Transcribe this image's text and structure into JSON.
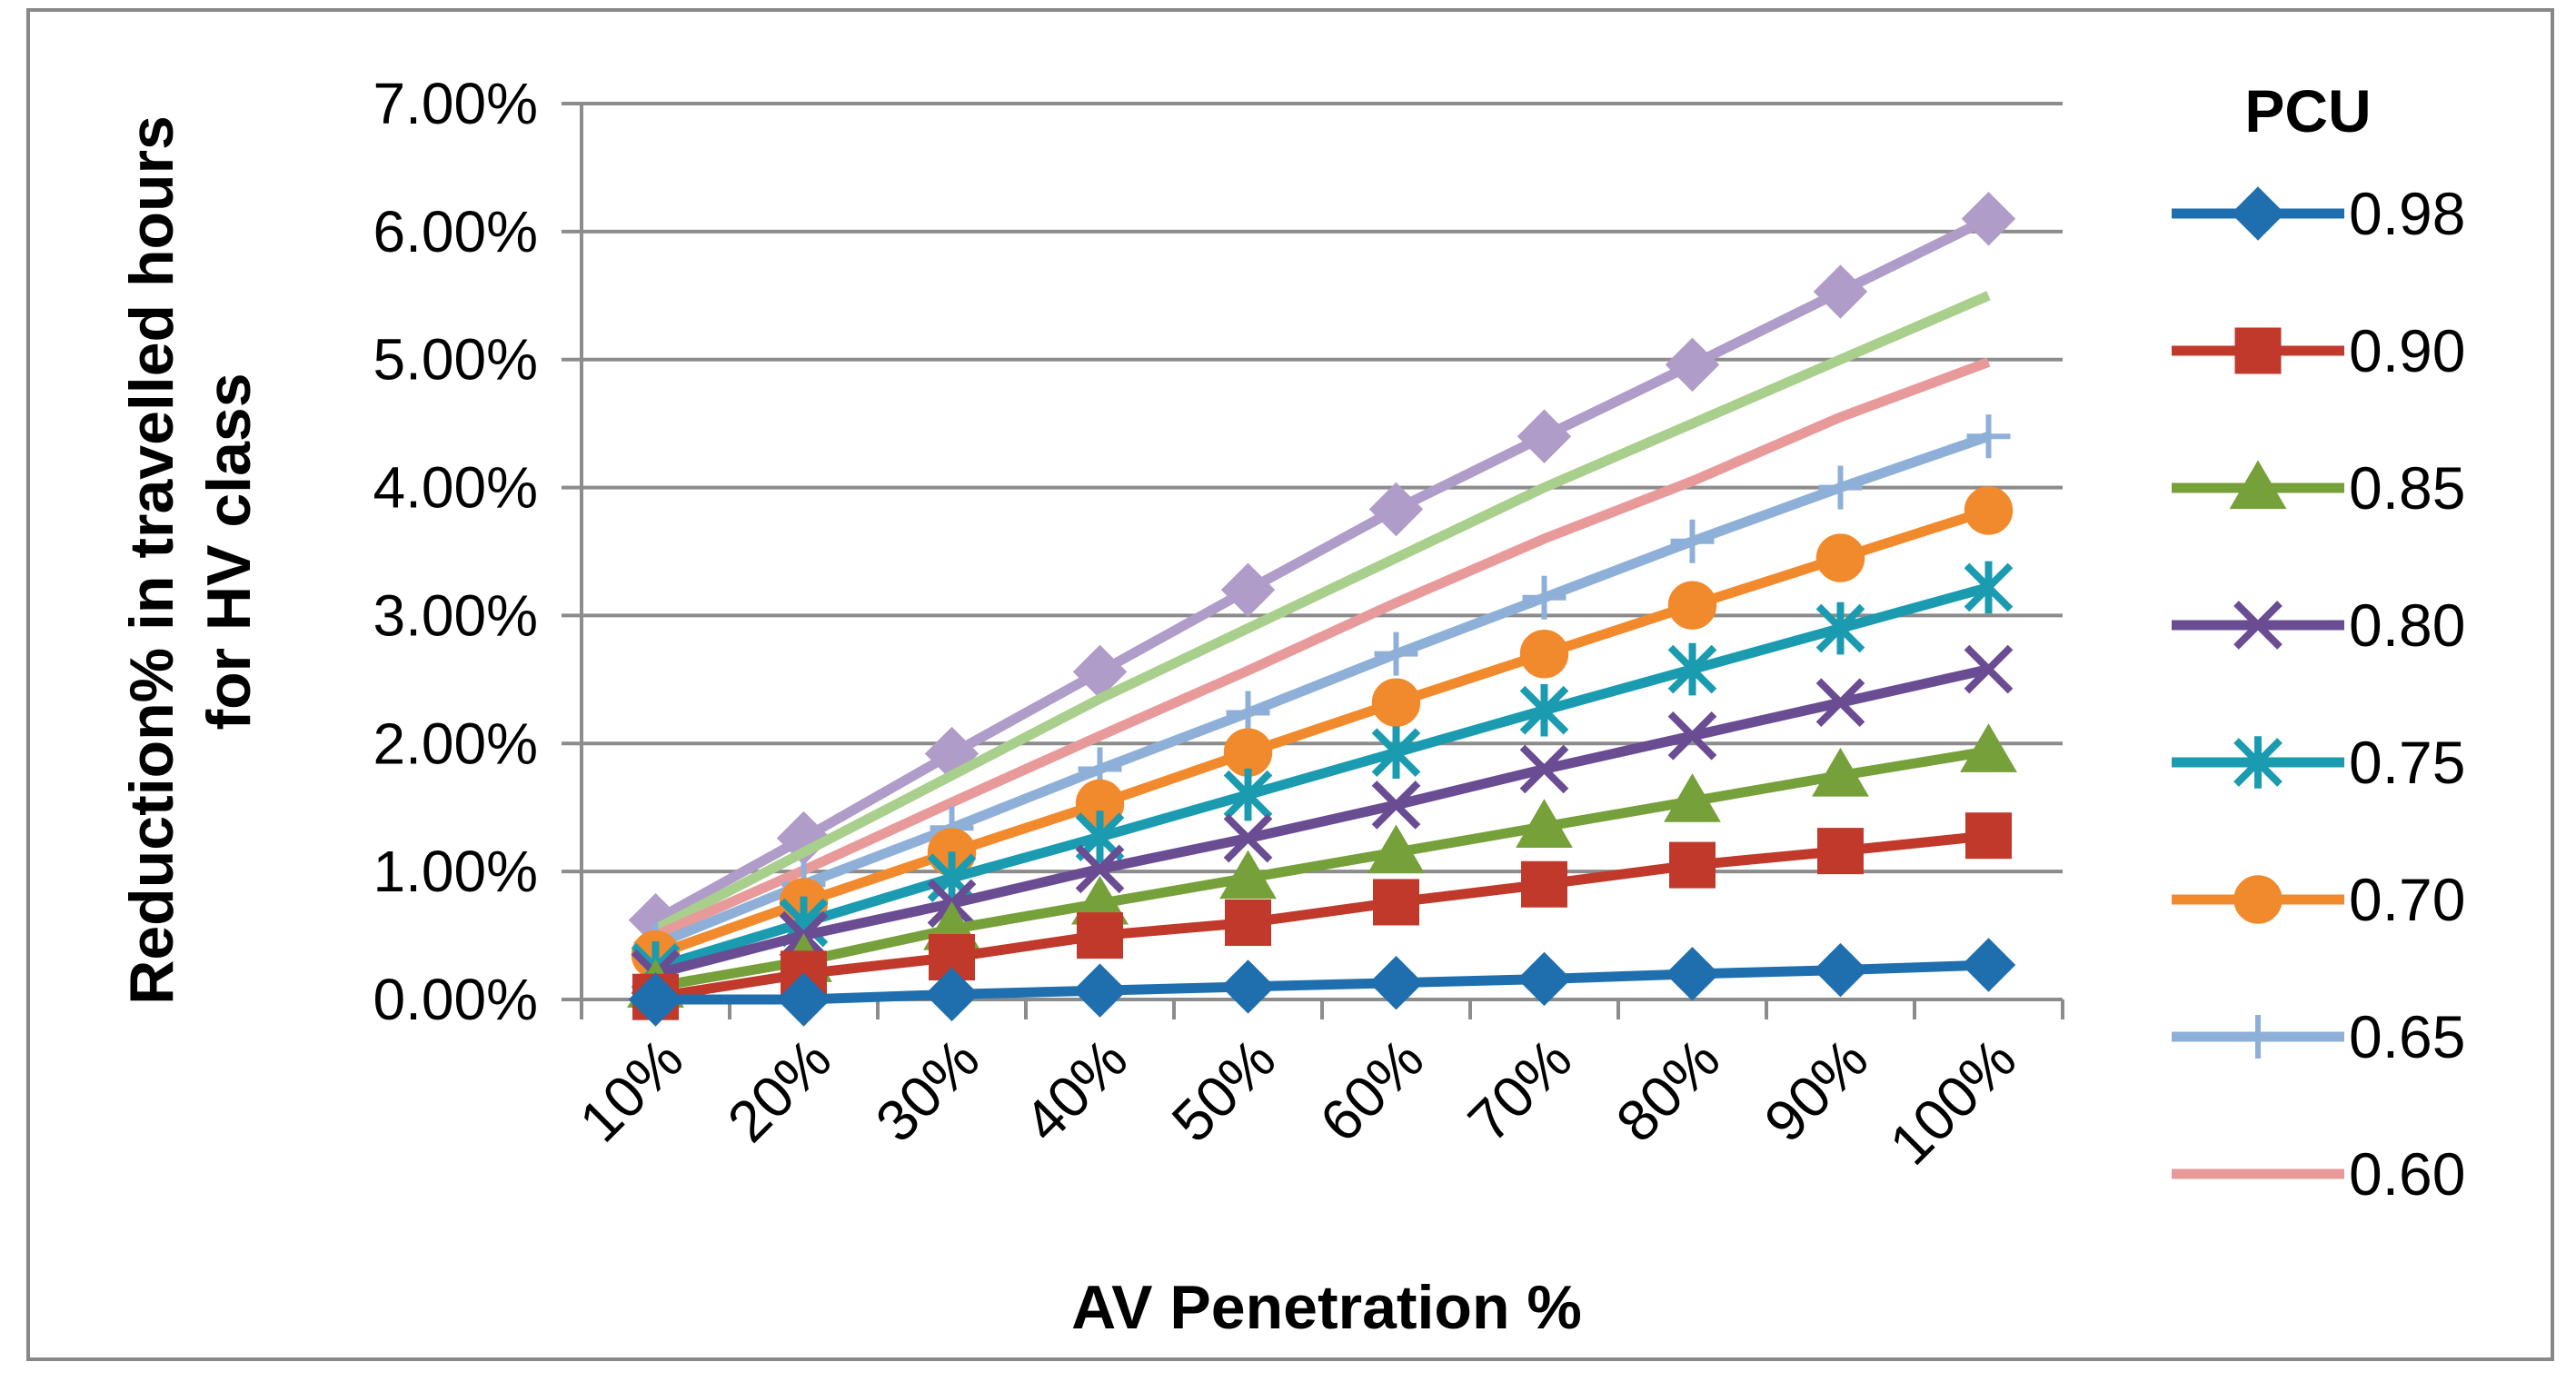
{
  "chart_data": {
    "type": "line",
    "title": "",
    "xlabel": "AV Penetration %",
    "ylabel_lines": [
      "Reduction% in travelled hours",
      "for HV class"
    ],
    "ylim": [
      0,
      0.07
    ],
    "y_ticks": [
      {
        "value": 0.0,
        "label": "0.00%"
      },
      {
        "value": 0.01,
        "label": "1.00%"
      },
      {
        "value": 0.02,
        "label": "2.00%"
      },
      {
        "value": 0.03,
        "label": "3.00%"
      },
      {
        "value": 0.04,
        "label": "4.00%"
      },
      {
        "value": 0.05,
        "label": "5.00%"
      },
      {
        "value": 0.06,
        "label": "6.00%"
      },
      {
        "value": 0.07,
        "label": "7.00%"
      }
    ],
    "grid": "horizontal",
    "legend_position": "right",
    "legend_title": "PCU",
    "categories": [
      "10%",
      "20%",
      "30%",
      "40%",
      "50%",
      "60%",
      "70%",
      "80%",
      "90%",
      "100%"
    ],
    "series": [
      {
        "name": "0.98",
        "color": "#1f6fae",
        "marker": "diamond",
        "values": [
          0.0,
          0.0,
          0.0004,
          0.0007,
          0.001,
          0.0013,
          0.0016,
          0.002,
          0.0023,
          0.0027
        ]
      },
      {
        "name": "0.90",
        "color": "#c0392b",
        "marker": "square",
        "values": [
          0.0002,
          0.002,
          0.0033,
          0.005,
          0.006,
          0.0076,
          0.009,
          0.0105,
          0.0116,
          0.0128
        ]
      },
      {
        "name": "0.85",
        "color": "#76a03a",
        "marker": "triangle",
        "values": [
          0.001,
          0.003,
          0.0055,
          0.0075,
          0.0095,
          0.0115,
          0.0135,
          0.0155,
          0.0175,
          0.0194
        ]
      },
      {
        "name": "0.80",
        "color": "#6a4c93",
        "marker": "x",
        "values": [
          0.002,
          0.005,
          0.0075,
          0.0102,
          0.0126,
          0.0152,
          0.018,
          0.0206,
          0.0232,
          0.0258
        ]
      },
      {
        "name": "0.75",
        "color": "#1a9bb0",
        "marker": "asterisk",
        "values": [
          0.0025,
          0.006,
          0.0095,
          0.0127,
          0.016,
          0.0193,
          0.0226,
          0.0258,
          0.029,
          0.0322
        ]
      },
      {
        "name": "0.70",
        "color": "#f18a2c",
        "marker": "circle",
        "values": [
          0.0035,
          0.0076,
          0.0115,
          0.0153,
          0.0193,
          0.0232,
          0.027,
          0.0308,
          0.0345,
          0.0382
        ]
      },
      {
        "name": "0.65",
        "color": "#8eb0d8",
        "marker": "plus",
        "values": [
          0.0043,
          0.009,
          0.0134,
          0.018,
          0.0224,
          0.027,
          0.0314,
          0.0358,
          0.04,
          0.044
        ]
      },
      {
        "name": "0.60",
        "color": "#e89a9a",
        "marker": "none",
        "values": [
          0.005,
          0.0101,
          0.0154,
          0.0206,
          0.0257,
          0.031,
          0.036,
          0.0405,
          0.0455,
          0.0498
        ]
      },
      {
        "name": "",
        "color": "#a9cf8c",
        "marker": "none",
        "values": [
          0.0055,
          0.0115,
          0.0175,
          0.0235,
          0.029,
          0.0345,
          0.04,
          0.045,
          0.05,
          0.055
        ]
      },
      {
        "name": "",
        "color": "#b09cc8",
        "marker": "diamond",
        "values": [
          0.0062,
          0.0126,
          0.0192,
          0.0256,
          0.032,
          0.0383,
          0.044,
          0.0496,
          0.0553,
          0.061
        ]
      }
    ]
  }
}
